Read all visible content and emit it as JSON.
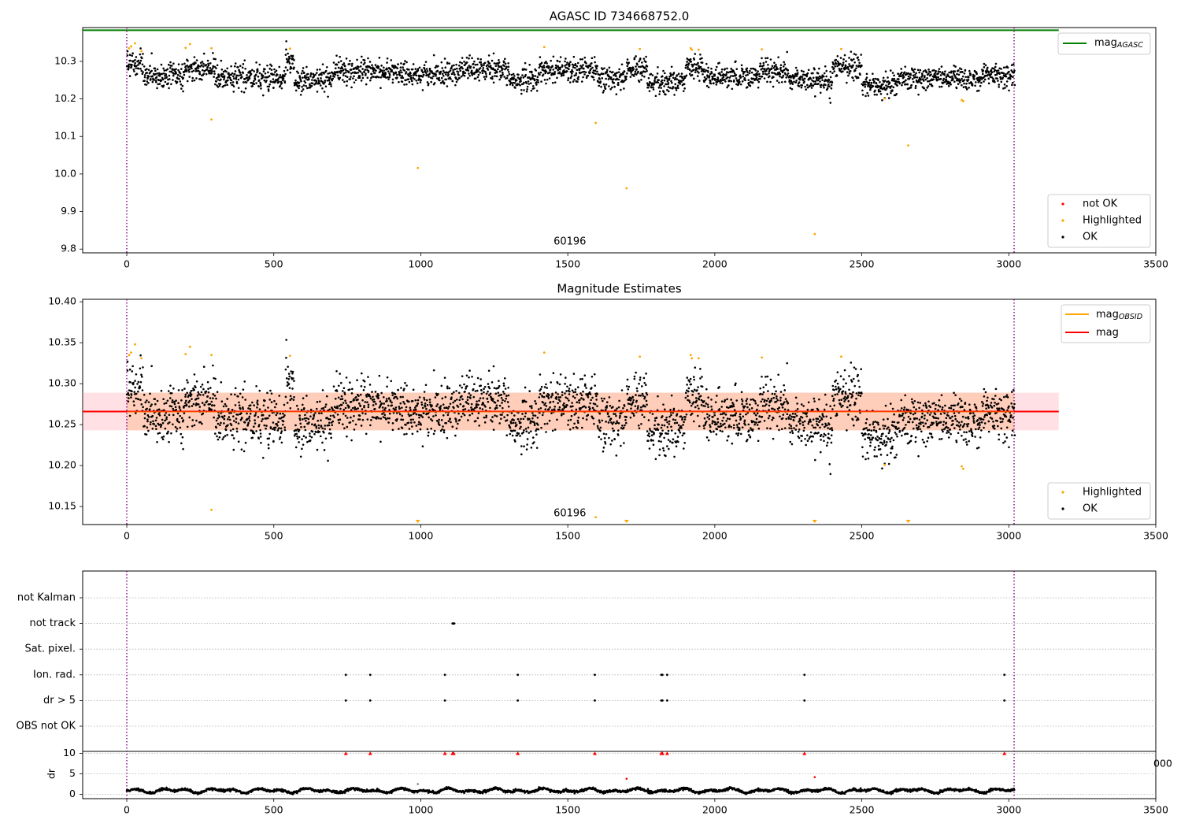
{
  "chart_data": [
    {
      "type": "scatter",
      "title": "AGASC ID 734668752.0",
      "xlim": [
        -150,
        3500
      ],
      "ylim": [
        9.79,
        10.39
      ],
      "xticks": [
        0,
        500,
        1000,
        1500,
        2000,
        2500,
        3000,
        3500
      ],
      "yticks": [
        9.8,
        9.9,
        10.0,
        10.1,
        10.2,
        10.3
      ],
      "ytick_labels": [
        "9.8",
        "9.9",
        "10.0",
        "10.1",
        "10.2",
        "10.3"
      ],
      "obsid_label": "60196",
      "obsid_label_x": 1507,
      "vlines": [
        0,
        3018
      ],
      "reference_line": {
        "name": "mag",
        "subscript": "AGASC",
        "value": 10.383,
        "x": [
          -150,
          3170
        ],
        "color": "#008000"
      },
      "legend_lines": [
        {
          "label": "mag",
          "subscript": "AGASC",
          "color": "#008000"
        }
      ],
      "legend_points": [
        {
          "label": "not OK",
          "color": "#ff0000"
        },
        {
          "label": "Highlighted",
          "color": "#ffa500"
        },
        {
          "label": "OK",
          "color": "#000000"
        }
      ],
      "highlighted_points": [
        [
          8,
          10.335
        ],
        [
          15,
          10.34
        ],
        [
          28,
          10.348
        ],
        [
          50,
          10.327
        ],
        [
          200,
          10.336
        ],
        [
          215,
          10.346
        ],
        [
          288,
          10.145
        ],
        [
          288,
          10.335
        ],
        [
          555,
          10.334
        ],
        [
          990,
          10.016
        ],
        [
          1420,
          10.338
        ],
        [
          1595,
          10.136
        ],
        [
          1700,
          9.962
        ],
        [
          1745,
          10.333
        ],
        [
          1918,
          10.335
        ],
        [
          1922,
          10.331
        ],
        [
          1945,
          10.331
        ],
        [
          2160,
          10.332
        ],
        [
          2340,
          9.84
        ],
        [
          2430,
          10.333
        ],
        [
          2578,
          10.201
        ],
        [
          2658,
          10.076
        ],
        [
          2840,
          10.197
        ],
        [
          2845,
          10.194
        ]
      ],
      "series_model": {
        "x_range": [
          0,
          3020
        ],
        "mean": 10.265,
        "noise": 0.022,
        "n_points": 2900,
        "seed": 7,
        "segments": [
          [
            0,
            55,
            10.292
          ],
          [
            55,
            200,
            10.262
          ],
          [
            200,
            300,
            10.281
          ],
          [
            300,
            540,
            10.257
          ],
          [
            540,
            570,
            10.304
          ],
          [
            570,
            700,
            10.252
          ],
          [
            700,
            900,
            10.275
          ],
          [
            900,
            1130,
            10.268
          ],
          [
            1130,
            1300,
            10.278
          ],
          [
            1300,
            1400,
            10.252
          ],
          [
            1400,
            1600,
            10.277
          ],
          [
            1600,
            1700,
            10.256
          ],
          [
            1700,
            1770,
            10.282
          ],
          [
            1770,
            1900,
            10.242
          ],
          [
            1900,
            1960,
            10.284
          ],
          [
            1960,
            2150,
            10.26
          ],
          [
            2150,
            2250,
            10.272
          ],
          [
            2250,
            2400,
            10.25
          ],
          [
            2400,
            2500,
            10.286
          ],
          [
            2500,
            2620,
            10.238
          ],
          [
            2620,
            2900,
            10.255
          ],
          [
            2900,
            3020,
            10.262
          ]
        ]
      }
    },
    {
      "type": "scatter",
      "title": "Magnitude Estimates",
      "xlim": [
        -150,
        3500
      ],
      "ylim": [
        10.128,
        10.403
      ],
      "xticks": [
        0,
        500,
        1000,
        1500,
        2000,
        2500,
        3000,
        3500
      ],
      "yticks": [
        10.15,
        10.2,
        10.25,
        10.3,
        10.35,
        10.4
      ],
      "ytick_labels": [
        "10.15",
        "10.20",
        "10.25",
        "10.30",
        "10.35",
        "10.40"
      ],
      "obsid_label": "60196",
      "obsid_label_x": 1507,
      "vlines": [
        0,
        3018
      ],
      "mag_line": {
        "name": "mag",
        "value": 10.266,
        "color": "#ff0000"
      },
      "mag_obsid": {
        "name": "mag",
        "subscript": "OBSID",
        "value": 10.266,
        "x": [
          0,
          3018
        ],
        "color": "#ffa500"
      },
      "band": {
        "low": 10.243,
        "high": 10.289,
        "x": [
          -150,
          3170
        ],
        "obsid_x": [
          0,
          3018
        ],
        "color": "#ff9aa8",
        "obsid_color": "#ffb27a"
      },
      "legend_lines": [
        {
          "label": "mag",
          "subscript": "OBSID",
          "color": "#ffa500"
        },
        {
          "label": "mag",
          "subscript": "",
          "color": "#ff0000"
        }
      ],
      "legend_points": [
        {
          "label": "Highlighted",
          "color": "#ffa500"
        },
        {
          "label": "OK",
          "color": "#000000"
        }
      ],
      "highlighted_points": [
        [
          8,
          10.335
        ],
        [
          15,
          10.338
        ],
        [
          28,
          10.348
        ],
        [
          50,
          10.331
        ],
        [
          200,
          10.336
        ],
        [
          215,
          10.345
        ],
        [
          288,
          10.335
        ],
        [
          288,
          10.146
        ],
        [
          555,
          10.334
        ],
        [
          1420,
          10.338
        ],
        [
          1595,
          10.137
        ],
        [
          1745,
          10.333
        ],
        [
          1918,
          10.335
        ],
        [
          1922,
          10.331
        ],
        [
          1945,
          10.331
        ],
        [
          2160,
          10.332
        ],
        [
          2430,
          10.333
        ],
        [
          2578,
          10.201
        ],
        [
          2840,
          10.199
        ],
        [
          2845,
          10.196
        ]
      ],
      "out_of_range_markers": [
        990,
        1700,
        2340,
        2658
      ]
    },
    {
      "type": "scatter",
      "title": "",
      "xlim": [
        -150,
        3500
      ],
      "xticks": [
        0,
        500,
        1000,
        1500,
        2000,
        2500,
        3000,
        3500
      ],
      "vlines": [
        0,
        3018
      ],
      "flag_rows": [
        "not Kalman",
        "not track",
        "Sat. pixel.",
        "Ion. rad.",
        "dr > 5",
        "OBS not OK"
      ],
      "flag_points": {
        "not track": [
          1108,
          1110,
          1112,
          1114
        ],
        "Ion. rad.": [
          745,
          828,
          1082,
          1330,
          1592,
          1818,
          1822,
          1838,
          2305,
          2985
        ],
        "dr > 5": [
          745,
          828,
          1082,
          1330,
          1592,
          1818,
          1822,
          1838,
          2305,
          2985
        ]
      },
      "dr_panel": {
        "ylabel": "dr",
        "ylim": [
          -0.5,
          10.5
        ],
        "yticks": [
          0,
          5,
          10
        ],
        "ytick_labels": [
          "0",
          "5",
          "10"
        ],
        "clipped_markers": [
          745,
          828,
          1082,
          1108,
          1112,
          1330,
          1592,
          1818,
          1822,
          1838,
          2305,
          2985
        ],
        "outliers": [
          [
            990,
            2.5
          ],
          [
            1700,
            3.8
          ],
          [
            2340,
            4.2
          ]
        ],
        "series_model": {
          "x_range": [
            0,
            3020
          ],
          "mean": 0.9,
          "amplitude": 0.6,
          "n_points": 2300,
          "seed": 11
        }
      },
      "stray_label": "000"
    }
  ]
}
